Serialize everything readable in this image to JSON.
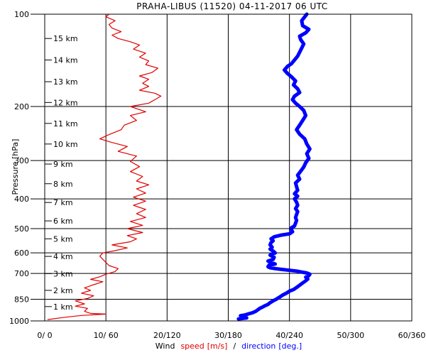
{
  "chart_data": {
    "type": "line",
    "title": "PRAHA-LIBUS (11520)    04-11-2017   06   UTC",
    "ylabel": "Pressure [hPa]",
    "xlabel": {
      "prefix": "Wind",
      "speed": "speed",
      "speed_unit": "[m/s]",
      "sep": "/",
      "direction": "direction",
      "direction_unit": "[deg.]"
    },
    "pressure_ticks": [
      1000,
      850,
      700,
      600,
      500,
      400,
      300,
      200,
      100
    ],
    "pressure_range": [
      1000,
      100
    ],
    "speed_range": [
      0,
      60
    ],
    "direction_range": [
      0,
      360
    ],
    "x_tick_labels": [
      "0/ 0",
      "10/ 60",
      "20/120",
      "30/180",
      "40/240",
      "50/300",
      "60/360"
    ],
    "altitude_labels": [
      {
        "label": "1 km",
        "p": 898
      },
      {
        "label": "2 km",
        "p": 795
      },
      {
        "label": "3 km",
        "p": 701
      },
      {
        "label": "4 km",
        "p": 616
      },
      {
        "label": "5 km",
        "p": 540
      },
      {
        "label": "6 km",
        "p": 472
      },
      {
        "label": "7 km",
        "p": 411
      },
      {
        "label": "8 km",
        "p": 357
      },
      {
        "label": "9 km",
        "p": 308
      },
      {
        "label": "10 km",
        "p": 265
      },
      {
        "label": "11 km",
        "p": 227
      },
      {
        "label": "12 km",
        "p": 194
      },
      {
        "label": "13 km",
        "p": 166
      },
      {
        "label": "14 km",
        "p": 141
      },
      {
        "label": "15 km",
        "p": 120
      }
    ],
    "series": [
      {
        "name": "speed",
        "color": "#e00000",
        "points": [
          [
            0.5,
            990
          ],
          [
            3,
            975
          ],
          [
            6,
            960
          ],
          [
            10,
            950
          ],
          [
            7.5,
            945
          ],
          [
            6.5,
            930
          ],
          [
            7,
            910
          ],
          [
            5,
            895
          ],
          [
            6.5,
            880
          ],
          [
            5,
            860
          ],
          [
            7,
            845
          ],
          [
            8,
            828
          ],
          [
            6,
            812
          ],
          [
            7.5,
            795
          ],
          [
            6.5,
            780
          ],
          [
            8,
            762
          ],
          [
            9.5,
            745
          ],
          [
            7.5,
            732
          ],
          [
            9,
            718
          ],
          [
            10,
            704
          ],
          [
            11.5,
            690
          ],
          [
            12,
            675
          ],
          [
            10.5,
            660
          ],
          [
            10,
            645
          ],
          [
            9.5,
            630
          ],
          [
            9,
            615
          ],
          [
            9.5,
            600
          ],
          [
            11.5,
            590
          ],
          [
            13.5,
            578
          ],
          [
            11,
            565
          ],
          [
            14,
            552
          ],
          [
            15,
            540
          ],
          [
            13.5,
            527
          ],
          [
            16,
            515
          ],
          [
            13.5,
            500
          ],
          [
            16,
            488
          ],
          [
            14,
            474
          ],
          [
            16.5,
            460
          ],
          [
            15,
            447
          ],
          [
            16.5,
            433
          ],
          [
            14.5,
            420
          ],
          [
            16.5,
            407
          ],
          [
            14.5,
            395
          ],
          [
            16.5,
            383
          ],
          [
            15,
            371
          ],
          [
            17,
            360
          ],
          [
            15,
            350
          ],
          [
            16,
            338
          ],
          [
            14,
            326
          ],
          [
            15.5,
            314
          ],
          [
            14,
            302
          ],
          [
            15,
            290
          ],
          [
            12,
            280
          ],
          [
            13.5,
            270
          ],
          [
            11,
            262
          ],
          [
            9,
            255
          ],
          [
            10.5,
            247
          ],
          [
            12.5,
            238
          ],
          [
            13,
            230
          ],
          [
            15,
            222
          ],
          [
            14,
            214
          ],
          [
            16.5,
            208
          ],
          [
            14,
            200
          ],
          [
            17,
            195
          ],
          [
            18,
            190
          ],
          [
            19,
            185
          ],
          [
            18,
            181
          ],
          [
            15.5,
            177
          ],
          [
            17,
            172
          ],
          [
            16,
            168
          ],
          [
            17,
            163
          ],
          [
            15.5,
            159
          ],
          [
            17.5,
            155
          ],
          [
            18.5,
            150
          ],
          [
            16.5,
            146
          ],
          [
            17,
            142
          ],
          [
            15.5,
            138
          ],
          [
            16.5,
            134
          ],
          [
            14.5,
            130
          ],
          [
            15.5,
            126
          ],
          [
            14,
            123
          ],
          [
            12,
            120
          ],
          [
            11,
            117
          ],
          [
            12.5,
            114
          ],
          [
            11,
            111
          ],
          [
            10.5,
            108
          ],
          [
            11.5,
            105
          ],
          [
            10,
            102
          ],
          [
            10.5,
            100
          ]
        ]
      },
      {
        "name": "direction",
        "color": "#0000ff",
        "points": [
          [
            190,
            985
          ],
          [
            198,
            978
          ],
          [
            193,
            970
          ],
          [
            192,
            962
          ],
          [
            197,
            955
          ],
          [
            200,
            948
          ],
          [
            204,
            940
          ],
          [
            207,
            930
          ],
          [
            209,
            920
          ],
          [
            211,
            910
          ],
          [
            214,
            900
          ],
          [
            216,
            892
          ],
          [
            219,
            883
          ],
          [
            221,
            872
          ],
          [
            224,
            860
          ],
          [
            227,
            850
          ],
          [
            230,
            838
          ],
          [
            233,
            825
          ],
          [
            237,
            812
          ],
          [
            240,
            800
          ],
          [
            244,
            790
          ],
          [
            247,
            778
          ],
          [
            250,
            765
          ],
          [
            253,
            752
          ],
          [
            256,
            740
          ],
          [
            258,
            730
          ],
          [
            256,
            720
          ],
          [
            259,
            712
          ],
          [
            260,
            704
          ],
          [
            257,
            698
          ],
          [
            252,
            693
          ],
          [
            247,
            688
          ],
          [
            240,
            684
          ],
          [
            232,
            679
          ],
          [
            226,
            675
          ],
          [
            221,
            671
          ],
          [
            219,
            666
          ],
          [
            220,
            658
          ],
          [
            226,
            652
          ],
          [
            222,
            645
          ],
          [
            219,
            638
          ],
          [
            224,
            630
          ],
          [
            225,
            620
          ],
          [
            221,
            610
          ],
          [
            226,
            600
          ],
          [
            224,
            592
          ],
          [
            221,
            583
          ],
          [
            223,
            575
          ],
          [
            221,
            565
          ],
          [
            222,
            555
          ],
          [
            224,
            548
          ],
          [
            222,
            540
          ],
          [
            225,
            532
          ],
          [
            232,
            525
          ],
          [
            240,
            520
          ],
          [
            243,
            512
          ],
          [
            242,
            505
          ],
          [
            242,
            497
          ],
          [
            245,
            490
          ],
          [
            246,
            480
          ],
          [
            247,
            470
          ],
          [
            246,
            460
          ],
          [
            247,
            450
          ],
          [
            248,
            440
          ],
          [
            246,
            430
          ],
          [
            248,
            420
          ],
          [
            247,
            410
          ],
          [
            245,
            400
          ],
          [
            248,
            392
          ],
          [
            245,
            385
          ],
          [
            248,
            375
          ],
          [
            247,
            365
          ],
          [
            246,
            355
          ],
          [
            250,
            345
          ],
          [
            248,
            335
          ],
          [
            251,
            325
          ],
          [
            254,
            315
          ],
          [
            256,
            305
          ],
          [
            259,
            295
          ],
          [
            257,
            285
          ],
          [
            260,
            275
          ],
          [
            257,
            265
          ],
          [
            255,
            255
          ],
          [
            250,
            246
          ],
          [
            247,
            238
          ],
          [
            250,
            230
          ],
          [
            253,
            222
          ],
          [
            256,
            214
          ],
          [
            254,
            206
          ],
          [
            250,
            200
          ],
          [
            246,
            195
          ],
          [
            243,
            190
          ],
          [
            245,
            185
          ],
          [
            250,
            180
          ],
          [
            248,
            175
          ],
          [
            244,
            170
          ],
          [
            246,
            165
          ],
          [
            242,
            160
          ],
          [
            238,
            156
          ],
          [
            235,
            152
          ],
          [
            238,
            148
          ],
          [
            242,
            145
          ],
          [
            245,
            141
          ],
          [
            248,
            137
          ],
          [
            250,
            133
          ],
          [
            252,
            129
          ],
          [
            254,
            125
          ],
          [
            251,
            121
          ],
          [
            250,
            118
          ],
          [
            256,
            115
          ],
          [
            259,
            112
          ],
          [
            253,
            109
          ],
          [
            252,
            105
          ],
          [
            255,
            102
          ],
          [
            257,
            100
          ]
        ]
      }
    ]
  }
}
